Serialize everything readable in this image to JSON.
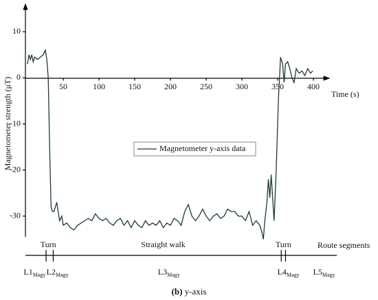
{
  "chart_data": {
    "type": "line",
    "y_label": "Magnetometer strength (μT)",
    "x_label": "Time (s)",
    "xlim": [
      0,
      420
    ],
    "ylim": [
      -34.5,
      16
    ],
    "xticks": [
      50,
      100,
      150,
      200,
      250,
      300,
      350,
      400
    ],
    "yticks": [
      10,
      0,
      -10,
      -20,
      -30
    ],
    "grid": false,
    "x": [
      0,
      2,
      4,
      6,
      8,
      10,
      14,
      18,
      22,
      25,
      27,
      29,
      31,
      33,
      35,
      37,
      39,
      41,
      43,
      45,
      48,
      50,
      55,
      60,
      65,
      70,
      75,
      80,
      85,
      90,
      95,
      100,
      105,
      110,
      115,
      120,
      125,
      130,
      135,
      140,
      145,
      150,
      155,
      160,
      165,
      170,
      175,
      180,
      185,
      190,
      195,
      200,
      205,
      210,
      215,
      220,
      225,
      230,
      235,
      240,
      245,
      250,
      255,
      260,
      265,
      270,
      275,
      280,
      285,
      290,
      295,
      300,
      305,
      310,
      315,
      320,
      325,
      328,
      330,
      332,
      335,
      337,
      339,
      341,
      343,
      345,
      348,
      351,
      354,
      357,
      359,
      361,
      364,
      367,
      370,
      373,
      376,
      380,
      384,
      388,
      392,
      396,
      399
    ],
    "series": [
      {
        "name": "Magnetometer y-axis data",
        "color": "#1d3b2c",
        "values": [
          3,
          5,
          4,
          5,
          3.5,
          4.5,
          4,
          4.5,
          5,
          6,
          4,
          0,
          -15,
          -28,
          -29,
          -29,
          -28,
          -27,
          -29,
          -31,
          -30,
          -32,
          -31.5,
          -32.5,
          -33,
          -32,
          -31.5,
          -31,
          -30.5,
          -31,
          -29.5,
          -30.5,
          -31,
          -30.5,
          -31.5,
          -32,
          -31,
          -30.5,
          -32,
          -31,
          -32.5,
          -31,
          -32,
          -32.5,
          -31,
          -32,
          -31.5,
          -32,
          -31,
          -32.5,
          -31.5,
          -32,
          -30.5,
          -31,
          -32,
          -29,
          -27.5,
          -30,
          -31,
          -30,
          -28.5,
          -30,
          -31,
          -30,
          -29.5,
          -30.5,
          -30,
          -28.5,
          -29,
          -29,
          -30,
          -30,
          -31,
          -29,
          -32,
          -31,
          -32,
          -33.5,
          -35,
          -31,
          -27,
          -22,
          -26,
          -21,
          -26,
          -31,
          -20,
          -5,
          4.5,
          3,
          -1,
          3,
          3.5,
          2,
          0,
          -1,
          2,
          1,
          1.5,
          0.5,
          2,
          1,
          1.5
        ]
      }
    ],
    "legend": "center",
    "route": {
      "label": "Route segments",
      "annotations": [
        {
          "text": "Turn",
          "x": 29
        },
        {
          "text": "Straight walk",
          "x": 190
        },
        {
          "text": "Turn",
          "x": 358
        }
      ],
      "boundaries": [
        26,
        36,
        355,
        361
      ],
      "segments": [
        {
          "name": "L1",
          "sub": "Magy",
          "x": 10
        },
        {
          "name": "L2",
          "sub": "Magy",
          "x": 42
        },
        {
          "name": "L3",
          "sub": "Magy",
          "x": 198
        },
        {
          "name": "L4",
          "sub": "Magy",
          "x": 365
        },
        {
          "name": "L5",
          "sub": "Magy",
          "x": 415
        }
      ]
    },
    "caption": {
      "label": "(b)",
      "text": "y-axis"
    }
  }
}
